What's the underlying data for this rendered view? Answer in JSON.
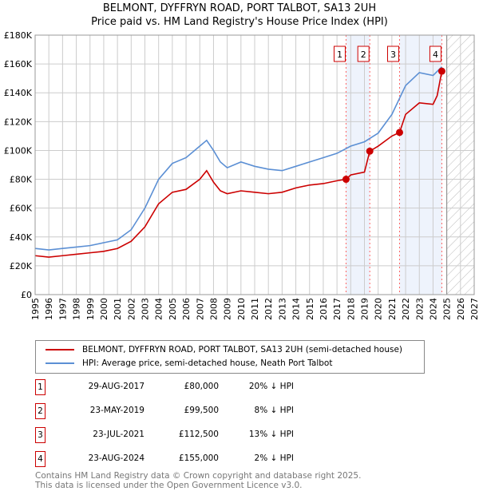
{
  "chart_data": {
    "type": "line",
    "title": "BELMONT, DYFFRYN ROAD, PORT TALBOT, SA13 2UH",
    "subtitle": "Price paid vs. HM Land Registry's House Price Index (HPI)",
    "xlim": [
      1995,
      2027
    ],
    "ylim": [
      0,
      180000
    ],
    "x_ticks": [
      "1995",
      "1996",
      "1997",
      "1998",
      "1999",
      "2000",
      "2001",
      "2002",
      "2003",
      "2004",
      "2005",
      "2006",
      "2007",
      "2008",
      "2009",
      "2010",
      "2011",
      "2012",
      "2013",
      "2014",
      "2015",
      "2016",
      "2017",
      "2018",
      "2019",
      "2020",
      "2021",
      "2022",
      "2023",
      "2024",
      "2025",
      "2026",
      "2027"
    ],
    "y_ticks": [
      {
        "v": 0,
        "label": "£0"
      },
      {
        "v": 20000,
        "label": "£20K"
      },
      {
        "v": 40000,
        "label": "£40K"
      },
      {
        "v": 60000,
        "label": "£60K"
      },
      {
        "v": 80000,
        "label": "£80K"
      },
      {
        "v": 100000,
        "label": "£100K"
      },
      {
        "v": 120000,
        "label": "£120K"
      },
      {
        "v": 140000,
        "label": "£140K"
      },
      {
        "v": 160000,
        "label": "£160K"
      },
      {
        "v": 180000,
        "label": "£180K"
      }
    ],
    "grid": true,
    "forecast_from": 2025.0,
    "shaded_ranges": [
      [
        2017.66,
        2019.39
      ],
      [
        2021.56,
        2024.64
      ]
    ],
    "series": [
      {
        "name": "BELMONT, DYFFRYN ROAD, PORT TALBOT, SA13 2UH (semi-detached house)",
        "color": "#cc0000",
        "x": [
          1995,
          1996,
          1997,
          1998,
          1999,
          2000,
          2001,
          2002,
          2003,
          2004,
          2005,
          2006,
          2007,
          2007.5,
          2008,
          2008.5,
          2009,
          2010,
          2011,
          2012,
          2013,
          2014,
          2015,
          2016,
          2017,
          2017.66,
          2018,
          2019,
          2019.39,
          2020,
          2021,
          2021.56,
          2022,
          2023,
          2024,
          2024.3,
          2024.64
        ],
        "y": [
          27000,
          26000,
          27000,
          28000,
          29000,
          30000,
          32000,
          37000,
          47000,
          63000,
          71000,
          73000,
          80000,
          86000,
          78000,
          72000,
          70000,
          72000,
          71000,
          70000,
          71000,
          74000,
          76000,
          77000,
          79000,
          80000,
          83000,
          85000,
          99500,
          103000,
          110000,
          112500,
          125000,
          133000,
          132000,
          138000,
          155000
        ]
      },
      {
        "name": "HPI: Average price, semi-detached house, Neath Port Talbot",
        "color": "#5b8fd4",
        "x": [
          1995,
          1996,
          1997,
          1998,
          1999,
          2000,
          2001,
          2002,
          2003,
          2004,
          2005,
          2006,
          2007,
          2007.5,
          2008,
          2008.5,
          2009,
          2010,
          2011,
          2012,
          2013,
          2014,
          2015,
          2016,
          2017,
          2018,
          2019,
          2020,
          2021,
          2022,
          2023,
          2024,
          2024.64
        ],
        "y": [
          32000,
          31000,
          32000,
          33000,
          34000,
          36000,
          38000,
          45000,
          60000,
          80000,
          91000,
          95000,
          103000,
          107000,
          100000,
          92000,
          88000,
          92000,
          89000,
          87000,
          86000,
          89000,
          92000,
          95000,
          98000,
          103000,
          106000,
          112000,
          125000,
          145000,
          154000,
          152000,
          158000
        ]
      }
    ],
    "markers": [
      {
        "label": "1",
        "x": 2017.66,
        "y": 80000
      },
      {
        "label": "2",
        "x": 2019.39,
        "y": 99500
      },
      {
        "label": "3",
        "x": 2021.56,
        "y": 112500
      },
      {
        "label": "4",
        "x": 2024.64,
        "y": 155000
      }
    ]
  },
  "legend": {
    "red": "BELMONT, DYFFRYN ROAD, PORT TALBOT, SA13 2UH (semi-detached house)",
    "blue": "HPI: Average price, semi-detached house, Neath Port Talbot"
  },
  "transactions": [
    {
      "num": "1",
      "date": "29-AUG-2017",
      "price": "£80,000",
      "hpi": "20% ↓ HPI"
    },
    {
      "num": "2",
      "date": "23-MAY-2019",
      "price": "£99,500",
      "hpi": "8% ↓ HPI"
    },
    {
      "num": "3",
      "date": "23-JUL-2021",
      "price": "£112,500",
      "hpi": "13% ↓ HPI"
    },
    {
      "num": "4",
      "date": "23-AUG-2024",
      "price": "£155,000",
      "hpi": "2% ↓ HPI"
    }
  ],
  "footer": {
    "line1": "Contains HM Land Registry data © Crown copyright and database right 2025.",
    "line2": "This data is licensed under the Open Government Licence v3.0."
  }
}
